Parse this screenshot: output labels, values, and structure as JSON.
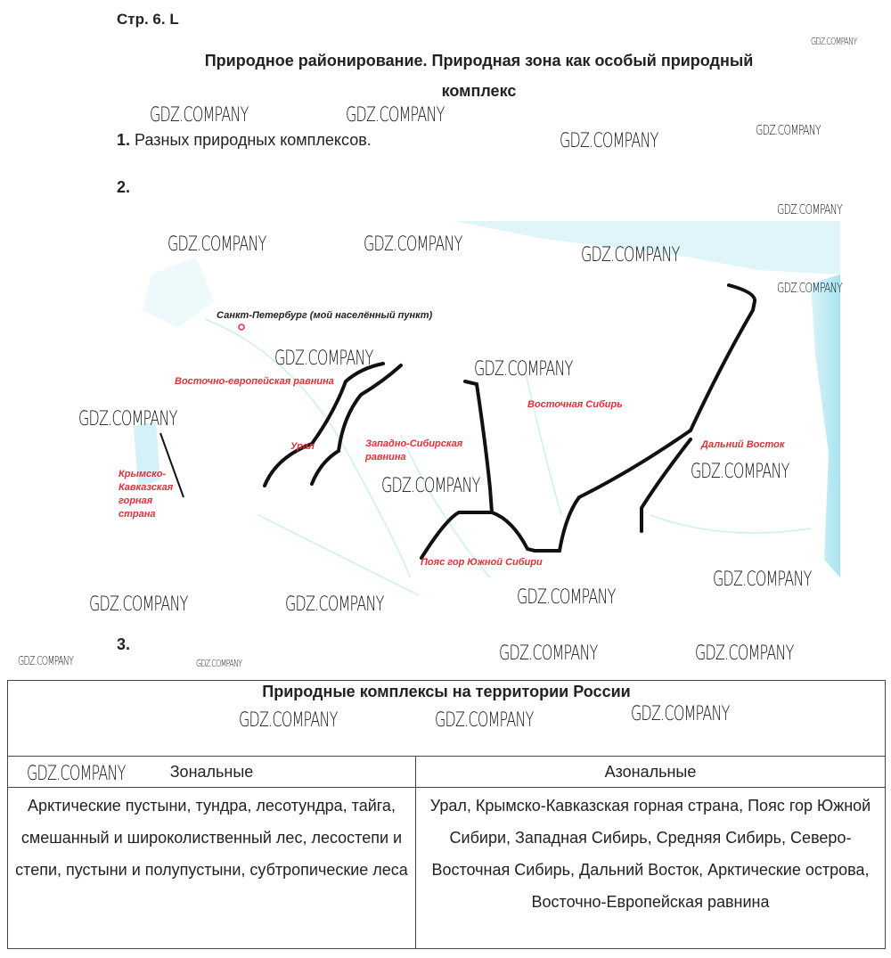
{
  "page_ref": "Стр. 6. L",
  "title_line1": "Природное районирование. Природная зона как особый природный",
  "title_line2": "комплекс",
  "q1": {
    "num": "1.",
    "answer": "Разных природных комплексов."
  },
  "q2": {
    "num": "2."
  },
  "map": {
    "city": "Санкт-Петербург (мой населённый пункт)",
    "regions": {
      "east_european": "Восточно-европейская равнина",
      "ural": "Урал",
      "west_siberian": "Западно-Сибирская равнина",
      "east_siberia": "Восточная Сибирь",
      "far_east": "Дальний Восток",
      "crimea_caucasus": "Крымско-Кавказская горная страна",
      "south_siberia": "Пояс гор Южной Сибири"
    },
    "label_color": "#e0303a"
  },
  "q3": {
    "num": "3."
  },
  "table": {
    "title": "Природные комплексы на территории России",
    "headers": [
      "Зональные",
      "Азональные"
    ],
    "zonal": "Арктические пустыни, тундра, лесотундра, тайга, смешанный и широколиственный лес, лесостепи и степи, пустыни и полупустыни, субтропические леса",
    "azonal": "Урал, Крымско-Кавказская горная страна, Пояс гор Южной Сибири, Западная Сибирь, Средняя Сибирь, Северо-Восточная Сибирь, Дальний Восток, Арктические острова, Восточно-Европейская равнина"
  },
  "watermark": "GDZ.COMPANY"
}
